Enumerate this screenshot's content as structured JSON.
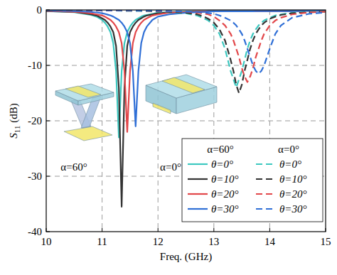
{
  "chart_data": {
    "type": "line",
    "x_label": "Freq. (GHz)",
    "y_label": "S11 (dB)",
    "xlim": [
      10,
      15
    ],
    "xticks": [
      10,
      11,
      12,
      13,
      14,
      15
    ],
    "ylim": [
      -40,
      0
    ],
    "yticks": [
      -40,
      -30,
      -20,
      -10,
      0
    ],
    "grid": true,
    "legend": "lower right",
    "legend_titles": [
      "α=60°",
      "α=0°"
    ],
    "annotations": [
      {
        "text": "α=60°"
      },
      {
        "text": "α=0°"
      }
    ],
    "x": [
      10,
      10.5,
      10.8,
      10.9,
      11.0,
      11.05,
      11.1,
      11.15,
      11.2,
      11.25,
      11.3,
      11.35,
      11.4,
      11.45,
      11.5,
      11.55,
      11.6,
      11.65,
      11.7,
      11.75,
      11.8,
      11.9,
      12.0,
      12.2,
      12.5,
      12.7,
      12.8,
      12.9,
      13.0,
      13.1,
      13.2,
      13.3,
      13.35,
      13.4,
      13.45,
      13.5,
      13.55,
      13.6,
      13.65,
      13.7,
      13.75,
      13.8,
      13.85,
      13.9,
      14.0,
      14.1,
      14.2,
      14.4,
      14.7,
      15
    ],
    "series": [
      {
        "name": "θ=0°",
        "color": "#3cc8c0",
        "line_style": "solid",
        "values": [
          -0.2,
          -0.4,
          -0.9,
          -1.2,
          -1.8,
          -2.3,
          -3,
          -4,
          -6,
          -11,
          -23,
          -11,
          -6,
          -4,
          -3,
          -2.3,
          -1.8,
          -1.5,
          -1.2,
          -1.0,
          -0.9,
          -0.7,
          -0.5,
          -0.4,
          -0.3,
          -0.25,
          -0.25,
          -0.2,
          -0.2,
          -0.2,
          -0.2,
          -0.2,
          -0.2,
          -0.2,
          -0.2,
          -0.2,
          -0.2,
          -0.2,
          -0.2,
          -0.2,
          -0.2,
          -0.2,
          -0.2,
          -0.2,
          -0.15,
          -0.15,
          -0.15,
          -0.15,
          -0.1,
          -0.1
        ]
      },
      {
        "name": "θ=10°",
        "color": "#333333",
        "line_style": "solid",
        "values": [
          -0.2,
          -0.35,
          -0.8,
          -1.0,
          -1.5,
          -1.8,
          -2.3,
          -3,
          -4,
          -6.5,
          -14,
          -35.5,
          -14,
          -6.5,
          -4,
          -3,
          -2.3,
          -1.8,
          -1.5,
          -1.2,
          -1.0,
          -0.8,
          -0.6,
          -0.45,
          -0.35,
          -0.3,
          -0.3,
          -0.25,
          -0.25,
          -0.25,
          -0.25,
          -0.25,
          -0.25,
          -0.25,
          -0.25,
          -0.25,
          -0.25,
          -0.25,
          -0.25,
          -0.25,
          -0.2,
          -0.2,
          -0.2,
          -0.2,
          -0.2,
          -0.2,
          -0.2,
          -0.2,
          -0.15,
          -0.15
        ]
      },
      {
        "name": "θ=20°",
        "color": "#e2474a",
        "line_style": "solid",
        "values": [
          -0.15,
          -0.35,
          -0.6,
          -0.8,
          -1.0,
          -1.2,
          -1.5,
          -1.8,
          -2.3,
          -3,
          -4,
          -6,
          -11,
          -22,
          -11,
          -6,
          -4,
          -3,
          -2.3,
          -1.8,
          -1.5,
          -1.0,
          -0.8,
          -0.5,
          -0.4,
          -0.3,
          -0.3,
          -0.25,
          -0.25,
          -0.25,
          -0.25,
          -0.25,
          -0.25,
          -0.25,
          -0.25,
          -0.25,
          -0.25,
          -0.25,
          -0.25,
          -0.25,
          -0.2,
          -0.2,
          -0.2,
          -0.2,
          -0.2,
          -0.2,
          -0.2,
          -0.2,
          -0.15,
          -0.15
        ]
      },
      {
        "name": "θ=30°",
        "color": "#2f6fd6",
        "line_style": "solid",
        "values": [
          -0.1,
          -0.2,
          -0.35,
          -0.45,
          -0.6,
          -0.7,
          -0.85,
          -1.0,
          -1.2,
          -1.5,
          -1.8,
          -2.3,
          -3,
          -4,
          -6,
          -11,
          -21,
          -11,
          -6,
          -4,
          -3,
          -1.8,
          -1.2,
          -0.8,
          -0.5,
          -0.4,
          -0.35,
          -0.3,
          -0.25,
          -0.25,
          -0.25,
          -0.25,
          -0.25,
          -0.25,
          -0.25,
          -0.25,
          -0.25,
          -0.25,
          -0.25,
          -0.25,
          -0.2,
          -0.2,
          -0.2,
          -0.2,
          -0.2,
          -0.2,
          -0.2,
          -0.2,
          -0.15,
          -0.15
        ]
      },
      {
        "name": "θ=0°",
        "color": "#3cc8c0",
        "line_style": "dashed",
        "values": [
          -0.05,
          -0.08,
          -0.1,
          -0.1,
          -0.12,
          -0.12,
          -0.12,
          -0.13,
          -0.13,
          -0.13,
          -0.14,
          -0.14,
          -0.14,
          -0.15,
          -0.15,
          -0.15,
          -0.16,
          -0.16,
          -0.17,
          -0.17,
          -0.18,
          -0.2,
          -0.3,
          -0.4,
          -0.6,
          -1.0,
          -1.4,
          -1.9,
          -2.8,
          -4.3,
          -7,
          -11,
          -12.5,
          -14,
          -12.5,
          -11,
          -9,
          -7,
          -5.5,
          -4.3,
          -3.5,
          -2.8,
          -2.3,
          -1.9,
          -1.4,
          -1.0,
          -0.8,
          -0.5,
          -0.35,
          -0.25
        ]
      },
      {
        "name": "θ=10°",
        "color": "#333333",
        "line_style": "dashed",
        "values": [
          -0.05,
          -0.08,
          -0.1,
          -0.1,
          -0.1,
          -0.12,
          -0.12,
          -0.12,
          -0.12,
          -0.13,
          -0.13,
          -0.13,
          -0.14,
          -0.14,
          -0.14,
          -0.15,
          -0.15,
          -0.15,
          -0.16,
          -0.16,
          -0.17,
          -0.2,
          -0.25,
          -0.35,
          -0.5,
          -0.8,
          -1.1,
          -1.6,
          -2.3,
          -3.5,
          -5.5,
          -9,
          -11,
          -13.5,
          -15,
          -13.5,
          -11,
          -9,
          -7,
          -5.5,
          -4.3,
          -3.5,
          -2.8,
          -2.3,
          -1.6,
          -1.2,
          -0.9,
          -0.6,
          -0.4,
          -0.3
        ]
      },
      {
        "name": "θ=20°",
        "color": "#e2474a",
        "line_style": "dashed",
        "values": [
          -0.05,
          -0.06,
          -0.08,
          -0.08,
          -0.1,
          -0.1,
          -0.1,
          -0.1,
          -0.1,
          -0.1,
          -0.11,
          -0.11,
          -0.11,
          -0.12,
          -0.12,
          -0.12,
          -0.13,
          -0.13,
          -0.13,
          -0.14,
          -0.14,
          -0.16,
          -0.2,
          -0.25,
          -0.35,
          -0.5,
          -0.6,
          -0.8,
          -1.2,
          -1.9,
          -2.8,
          -4.3,
          -5.5,
          -7,
          -8.5,
          -10.5,
          -12,
          -13,
          -12,
          -10.5,
          -8.5,
          -7,
          -5.5,
          -4.3,
          -2.8,
          -1.9,
          -1.4,
          -0.8,
          -0.45,
          -0.3
        ]
      },
      {
        "name": "θ=30°",
        "color": "#2f6fd6",
        "line_style": "dashed",
        "values": [
          -0.04,
          -0.05,
          -0.06,
          -0.06,
          -0.07,
          -0.07,
          -0.07,
          -0.08,
          -0.08,
          -0.08,
          -0.08,
          -0.09,
          -0.09,
          -0.09,
          -0.09,
          -0.1,
          -0.1,
          -0.1,
          -0.1,
          -0.11,
          -0.11,
          -0.13,
          -0.15,
          -0.2,
          -0.3,
          -0.35,
          -0.45,
          -0.55,
          -0.7,
          -1.0,
          -1.4,
          -1.9,
          -2.3,
          -2.8,
          -3.5,
          -4.3,
          -5.5,
          -7,
          -8.5,
          -10,
          -11,
          -11.5,
          -11,
          -10,
          -7,
          -4.3,
          -2.8,
          -1.4,
          -0.7,
          -0.45
        ]
      }
    ]
  }
}
